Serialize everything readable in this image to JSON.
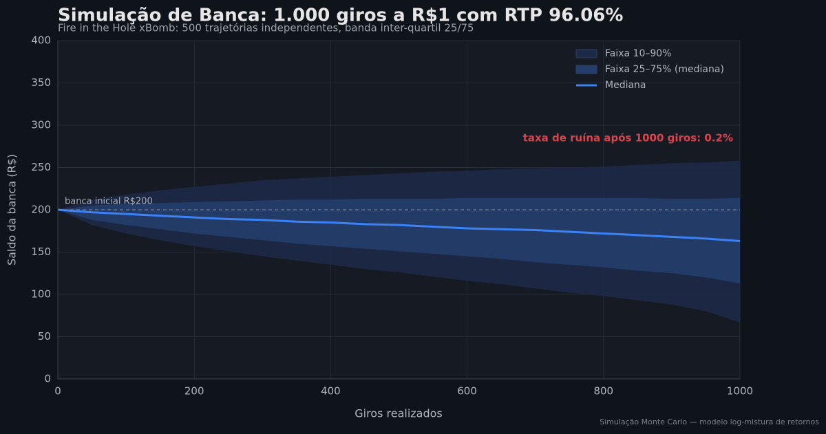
{
  "chart_data": {
    "type": "band",
    "title": "Simulação de Banca: 1.000 giros a R$1 com RTP 96.06%",
    "subtitle": "Fire in the Hole xBomb: 500 trajetórias independentes, banda inter-quartil 25/75",
    "x_label": "Giros realizados",
    "y_label": "Saldo da banca (R$)",
    "footnote": "Simulação Monte Carlo — modelo log-mistura de retornos",
    "annotation": "taxa de ruína após 1000 giros: 0.2%",
    "reference_line": {
      "value": 200,
      "label": "banca inicial R$200"
    },
    "x": [
      0,
      50,
      100,
      150,
      200,
      250,
      300,
      350,
      400,
      450,
      500,
      550,
      600,
      650,
      700,
      750,
      800,
      850,
      900,
      950,
      1000
    ],
    "series": [
      {
        "name": "Faixa 10–90%",
        "kind": "band",
        "color": "#1d2a47",
        "upper": [
          200,
          212,
          218,
          223,
          227,
          231,
          235,
          237,
          239,
          241,
          243,
          245,
          246,
          248,
          249,
          250,
          251,
          253,
          255,
          256,
          258
        ],
        "lower": [
          200,
          182,
          172,
          164,
          157,
          151,
          145,
          140,
          135,
          130,
          126,
          121,
          116,
          112,
          107,
          102,
          98,
          93,
          88,
          80,
          67
        ]
      },
      {
        "name": "Faixa 25–75% (mediana)",
        "kind": "band",
        "color": "#253d6b",
        "upper": [
          200,
          205,
          207,
          208,
          209,
          210,
          211,
          212,
          212,
          213,
          213,
          213,
          214,
          214,
          214,
          214,
          214,
          214,
          213,
          213,
          214
        ],
        "lower": [
          200,
          188,
          182,
          177,
          172,
          168,
          164,
          160,
          157,
          154,
          151,
          148,
          145,
          142,
          138,
          135,
          132,
          128,
          125,
          120,
          113
        ]
      },
      {
        "name": "Mediana",
        "kind": "line",
        "color": "#3b82f6",
        "values": [
          200,
          197,
          195,
          193,
          191,
          189,
          188,
          186,
          185,
          183,
          182,
          180,
          178,
          177,
          176,
          174,
          172,
          170,
          168,
          166,
          163
        ]
      }
    ],
    "xlim": [
      0,
      1000
    ],
    "xticks": [
      0,
      200,
      400,
      600,
      800,
      1000
    ],
    "ylim": [
      0,
      400
    ],
    "yticks": [
      0,
      50,
      100,
      150,
      200,
      250,
      300,
      350,
      400
    ],
    "grid": true,
    "legend": "upper right"
  }
}
